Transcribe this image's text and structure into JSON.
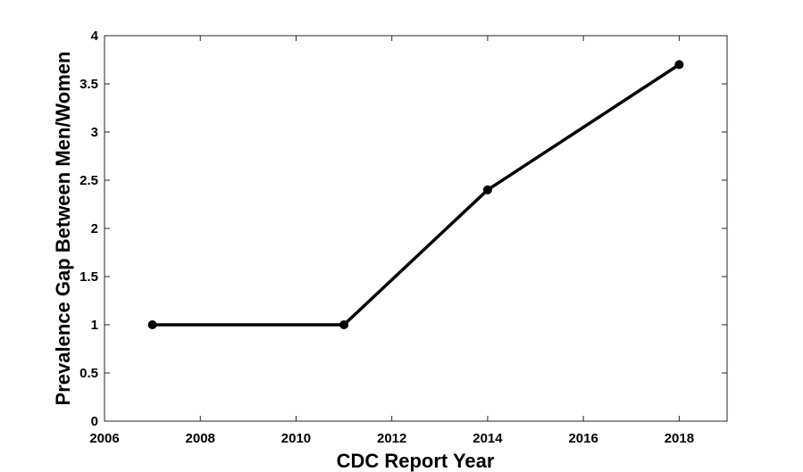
{
  "chart_data": {
    "type": "line",
    "title": "",
    "xlabel": "CDC Report Year",
    "ylabel": "Prevalence Gap Between Men/Women",
    "xlim": [
      2006,
      2019
    ],
    "ylim": [
      0,
      4
    ],
    "xticks": [
      2006,
      2008,
      2010,
      2012,
      2014,
      2016,
      2018
    ],
    "yticks": [
      0,
      0.5,
      1,
      1.5,
      2,
      2.5,
      3,
      3.5,
      4
    ],
    "ytick_labels": [
      "0",
      "0.5",
      "1",
      "1.5",
      "2",
      "2.5",
      "3",
      "3.5",
      "4"
    ],
    "grid": false,
    "series": [
      {
        "x": [
          2007,
          2011,
          2014,
          2018
        ],
        "y": [
          1.0,
          1.0,
          2.4,
          3.7
        ],
        "color": "#000000",
        "marker": "circle"
      }
    ]
  }
}
